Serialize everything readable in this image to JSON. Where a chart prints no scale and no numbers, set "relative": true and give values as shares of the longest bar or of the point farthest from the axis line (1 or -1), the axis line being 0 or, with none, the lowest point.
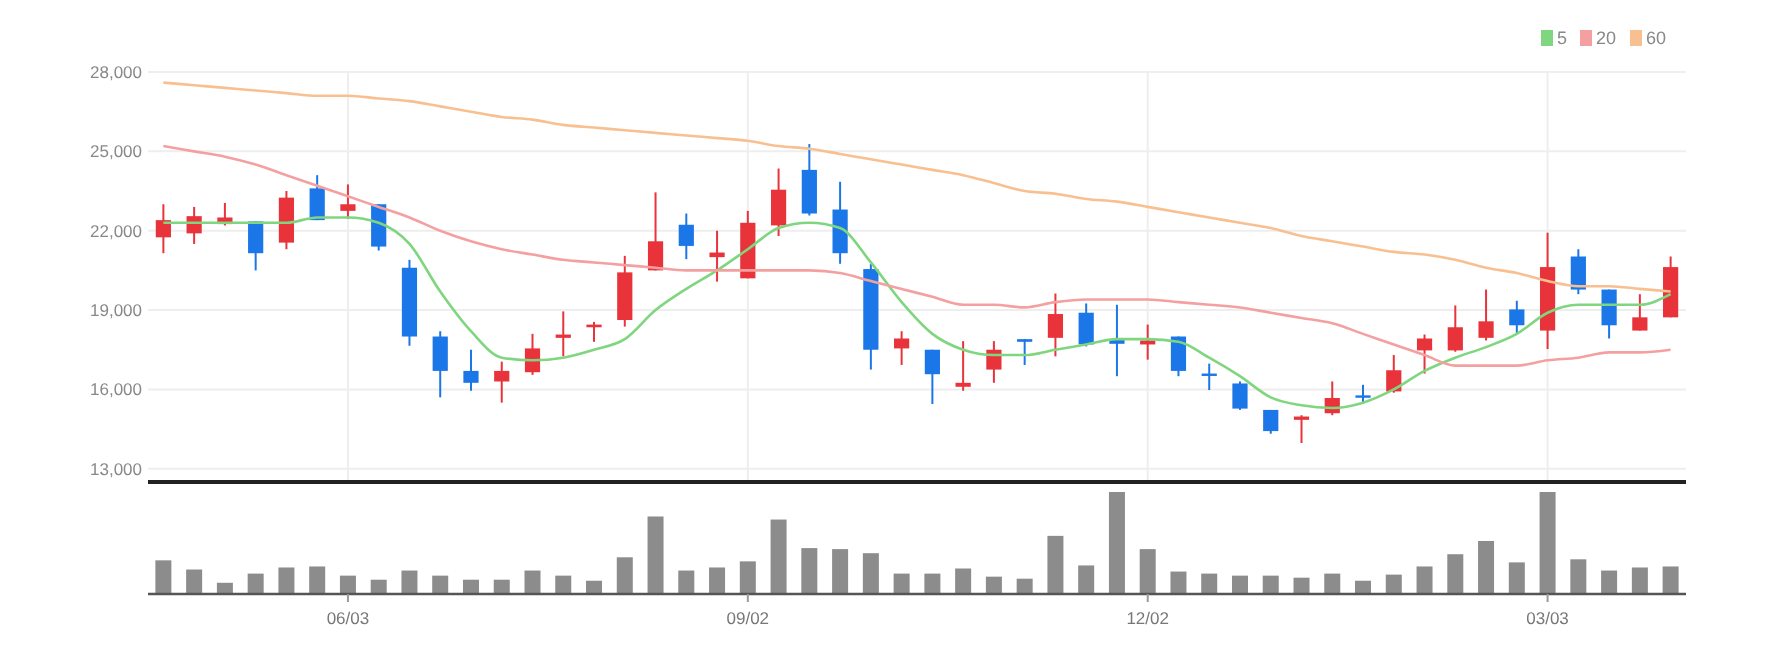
{
  "chart_data": [
    {
      "type": "candlestick",
      "categories": [
        null,
        null,
        null,
        null,
        null,
        null,
        null,
        null,
        null,
        null,
        null,
        null,
        null,
        null,
        null,
        null,
        null,
        null,
        null,
        null,
        null,
        null,
        null,
        null,
        null,
        null,
        null,
        null,
        null,
        null,
        null,
        null,
        null,
        null,
        null,
        null,
        null,
        null,
        null,
        null,
        null,
        null,
        null,
        null,
        null,
        null,
        null,
        null,
        null,
        null
      ],
      "ohlc": [
        [
          21750,
          23000,
          21150,
          22400
        ],
        [
          21900,
          22900,
          21500,
          22550
        ],
        [
          22250,
          23050,
          22200,
          22500
        ],
        [
          22350,
          22350,
          20500,
          21150
        ],
        [
          21550,
          23500,
          21300,
          23250
        ],
        [
          23600,
          24100,
          22400,
          22400
        ],
        [
          22750,
          23750,
          22450,
          23000
        ],
        [
          23000,
          23000,
          21250,
          21400
        ],
        [
          20600,
          20900,
          17650,
          18000
        ],
        [
          18000,
          18200,
          15700,
          16700
        ],
        [
          16700,
          17500,
          15950,
          16250
        ],
        [
          16300,
          17050,
          15500,
          16700
        ],
        [
          16650,
          18100,
          16550,
          17550
        ],
        [
          17950,
          18950,
          17250,
          18075
        ],
        [
          18350,
          18550,
          17800,
          18450
        ],
        [
          18625,
          21050,
          18375,
          20425
        ],
        [
          20500,
          23450,
          20500,
          21600
        ],
        [
          22225,
          22650,
          20925,
          21425
        ],
        [
          21000,
          22000,
          20075,
          21175
        ],
        [
          20200,
          22750,
          20200,
          22300
        ],
        [
          22200,
          24350,
          21800,
          23550
        ],
        [
          24300,
          25275,
          22575,
          22650
        ],
        [
          22800,
          23850,
          20750,
          21150
        ],
        [
          20550,
          20750,
          16750,
          17500
        ],
        [
          17550,
          18200,
          16925,
          17925
        ],
        [
          17500,
          17500,
          15450,
          16575
        ],
        [
          16100,
          17825,
          15950,
          16250
        ],
        [
          16750,
          17825,
          16250,
          17500
        ],
        [
          17900,
          17900,
          16925,
          17800
        ],
        [
          17950,
          19625,
          17250,
          18850
        ],
        [
          18900,
          19250,
          17625,
          17700
        ],
        [
          17900,
          19200,
          16500,
          17725
        ],
        [
          17700,
          18450,
          17125,
          17850
        ],
        [
          18000,
          18000,
          16500,
          16700
        ],
        [
          16600,
          16975,
          15975,
          16525
        ],
        [
          16225,
          16300,
          15225,
          15275
        ],
        [
          15225,
          15225,
          14325,
          14425
        ],
        [
          14850,
          15025,
          13975,
          14975
        ],
        [
          15100,
          16300,
          15025,
          15675
        ],
        [
          15775,
          16175,
          15475,
          15700
        ],
        [
          15925,
          17300,
          15875,
          16725
        ],
        [
          17475,
          18075,
          16600,
          17925
        ],
        [
          17475,
          19175,
          17425,
          18350
        ],
        [
          17950,
          19775,
          17850,
          18575
        ],
        [
          19025,
          19350,
          18100,
          18425
        ],
        [
          18225,
          21925,
          17525,
          20625
        ],
        [
          21025,
          21300,
          19600,
          19775
        ],
        [
          19775,
          19775,
          17925,
          18425
        ],
        [
          18225,
          19600,
          18225,
          18725
        ],
        [
          18725,
          21025,
          18725,
          20625
        ]
      ],
      "colors": [
        "#e8333a",
        "#e8333a",
        "#e8333a",
        "#1b76e8",
        "#e8333a",
        "#1b76e8",
        "#e8333a",
        "#1b76e8",
        "#1b76e8",
        "#1b76e8",
        "#1b76e8",
        "#e8333a",
        "#e8333a",
        "#e8333a",
        "#e8333a",
        "#e8333a",
        "#e8333a",
        "#1b76e8",
        "#e8333a",
        "#e8333a",
        "#e8333a",
        "#1b76e8",
        "#1b76e8",
        "#1b76e8",
        "#e8333a",
        "#1b76e8",
        "#e8333a",
        "#e8333a",
        "#1b76e8",
        "#e8333a",
        "#1b76e8",
        "#1b76e8",
        "#e8333a",
        "#1b76e8",
        "#1b76e8",
        "#1b76e8",
        "#1b76e8",
        "#e8333a",
        "#e8333a",
        "#1b76e8",
        "#e8333a",
        "#e8333a",
        "#e8333a",
        "#e8333a",
        "#1b76e8",
        "#e8333a",
        "#1b76e8",
        "#1b76e8",
        "#e8333a",
        "#e8333a"
      ],
      "ylim": [
        12500,
        28000
      ],
      "yticks": [
        {
          "value": 13000,
          "label": "13,000"
        },
        {
          "value": 16000,
          "label": "16,000"
        },
        {
          "value": 19000,
          "label": "19,000"
        },
        {
          "value": 22000,
          "label": "22,000"
        },
        {
          "value": 25000,
          "label": "25,000"
        },
        {
          "value": 28000,
          "label": "28,000"
        }
      ],
      "grid": true,
      "legend": "top right",
      "tick_labels": "y",
      "series": [
        {
          "type": "line",
          "name": "5",
          "color": "#7fd67f",
          "values": [
            22300,
            22300,
            22300,
            22300,
            22300,
            22500,
            22500,
            22300,
            21500,
            19700,
            18200,
            17200,
            17100,
            17200,
            17500,
            17900,
            19000,
            19800,
            20500,
            21300,
            22100,
            22300,
            22100,
            20800,
            19300,
            18100,
            17500,
            17300,
            17300,
            17500,
            17700,
            17900,
            17900,
            17800,
            17200,
            16500,
            15700,
            15400,
            15300,
            15500,
            16000,
            16700,
            17200,
            17600,
            18100,
            18900,
            19200,
            19200,
            19200,
            19600
          ]
        },
        {
          "type": "line",
          "name": "20",
          "color": "#f4a0a0",
          "values": [
            25200,
            25000,
            24800,
            24500,
            24100,
            23700,
            23300,
            22900,
            22500,
            22000,
            21600,
            21300,
            21100,
            20900,
            20800,
            20700,
            20600,
            20500,
            20500,
            20500,
            20500,
            20500,
            20400,
            20100,
            19800,
            19500,
            19200,
            19200,
            19100,
            19300,
            19400,
            19400,
            19400,
            19300,
            19200,
            19100,
            18900,
            18700,
            18500,
            18100,
            17700,
            17300,
            16900,
            16900,
            16900,
            17100,
            17200,
            17400,
            17400,
            17500
          ]
        },
        {
          "type": "line",
          "name": "60",
          "color": "#f8c090",
          "values": [
            27600,
            27500,
            27400,
            27300,
            27200,
            27100,
            27100,
            27000,
            26900,
            26700,
            26500,
            26300,
            26200,
            26000,
            25900,
            25800,
            25700,
            25600,
            25500,
            25400,
            25200,
            25100,
            24900,
            24700,
            24500,
            24300,
            24100,
            23800,
            23500,
            23400,
            23200,
            23100,
            22900,
            22700,
            22500,
            22300,
            22100,
            21800,
            21600,
            21400,
            21200,
            21100,
            20900,
            20600,
            20400,
            20100,
            19900,
            19900,
            19800,
            19700
          ]
        }
      ]
    },
    {
      "type": "bar",
      "relative": true,
      "tick_labels": "x",
      "color": "#8c8c8c",
      "categories": [
        null,
        null,
        null,
        null,
        null,
        null,
        "06/03",
        null,
        null,
        null,
        null,
        null,
        null,
        null,
        null,
        null,
        null,
        null,
        null,
        "09/02",
        null,
        null,
        null,
        null,
        null,
        null,
        null,
        null,
        null,
        null,
        null,
        null,
        "12/02",
        null,
        null,
        null,
        null,
        null,
        null,
        null,
        null,
        null,
        null,
        null,
        null,
        "03/03",
        null,
        null,
        null,
        null
      ],
      "values": [
        0.33,
        0.24,
        0.11,
        0.2,
        0.26,
        0.27,
        0.18,
        0.14,
        0.23,
        0.18,
        0.14,
        0.14,
        0.23,
        0.18,
        0.13,
        0.36,
        0.76,
        0.23,
        0.26,
        0.32,
        0.73,
        0.45,
        0.44,
        0.4,
        0.2,
        0.2,
        0.25,
        0.17,
        0.15,
        0.57,
        0.28,
        1,
        0.44,
        0.22,
        0.2,
        0.18,
        0.18,
        0.16,
        0.2,
        0.13,
        0.19,
        0.27,
        0.39,
        0.52,
        0.31,
        1,
        0.34,
        0.23,
        0.26,
        0.27
      ]
    }
  ]
}
